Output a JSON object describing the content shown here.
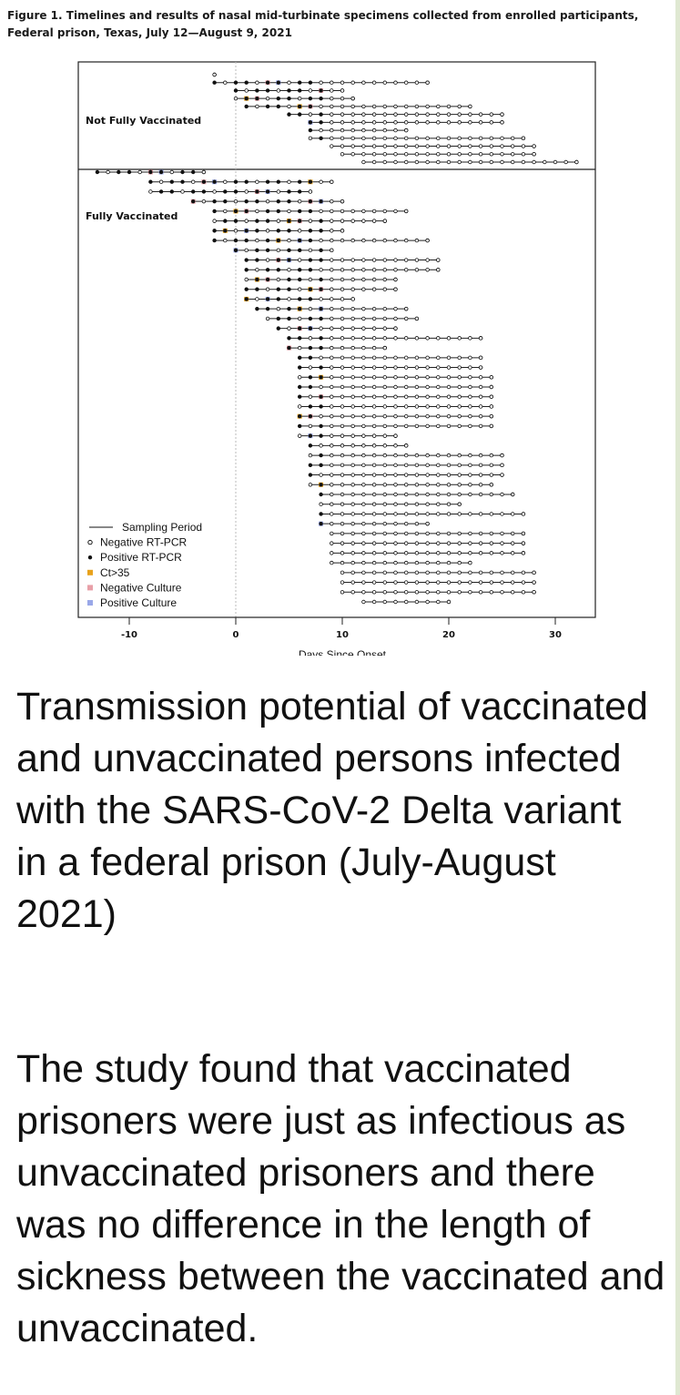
{
  "post": {
    "figure_caption": "Figure 1. Timelines and results of nasal mid-turbinate specimens collected from enrolled participants, Federal prison, Texas, July 12—August 9, 2021",
    "headline": "Transmission potential of vaccinated and unvaccinated persons infected with the SARS-CoV-2 Delta variant in a federal prison (July-August 2021)",
    "body": "The study found that vaccinated prisoners were just as infectious as unvaccinated prisoners and there was no difference in the length of sickness between the vaccinated and unvaccinated."
  },
  "colors": {
    "ct35": "#e8a21c",
    "negative_culture": "#e8a0a8",
    "positive_culture": "#9aa8e8"
  },
  "chart_data": {
    "type": "timeline",
    "xlabel": "Days Since Onset",
    "xlim": [
      -15,
      34
    ],
    "xticks": [
      -10,
      0,
      10,
      20,
      30
    ],
    "groups": [
      "Not Fully Vaccinated",
      "Fully Vaccinated"
    ],
    "legend_position": "bottom-left",
    "legend": [
      {
        "symbol": "line",
        "label": "Sampling Period"
      },
      {
        "symbol": "open-circle",
        "label": "Negative RT-PCR"
      },
      {
        "symbol": "filled-circle",
        "label": "Positive RT-PCR"
      },
      {
        "symbol": "orange-square",
        "label": "Ct>35"
      },
      {
        "symbol": "pink-square",
        "label": "Negative Culture"
      },
      {
        "symbol": "blue-square",
        "label": "Positive Culture"
      }
    ],
    "participants": [
      {
        "group": "Not Fully Vaccinated",
        "start": -2,
        "end": -2
      },
      {
        "group": "Not Fully Vaccinated",
        "start": -2,
        "end": 18
      },
      {
        "group": "Not Fully Vaccinated",
        "start": 0,
        "end": 10
      },
      {
        "group": "Not Fully Vaccinated",
        "start": 0,
        "end": 11
      },
      {
        "group": "Not Fully Vaccinated",
        "start": 1,
        "end": 22
      },
      {
        "group": "Not Fully Vaccinated",
        "start": 5,
        "end": 25
      },
      {
        "group": "Not Fully Vaccinated",
        "start": 7,
        "end": 25
      },
      {
        "group": "Not Fully Vaccinated",
        "start": 7,
        "end": 16
      },
      {
        "group": "Not Fully Vaccinated",
        "start": 7,
        "end": 27
      },
      {
        "group": "Not Fully Vaccinated",
        "start": 9,
        "end": 28
      },
      {
        "group": "Not Fully Vaccinated",
        "start": 10,
        "end": 28
      },
      {
        "group": "Not Fully Vaccinated",
        "start": 12,
        "end": 32
      },
      {
        "group": "Fully Vaccinated",
        "start": -13,
        "end": -3
      },
      {
        "group": "Fully Vaccinated",
        "start": -8,
        "end": 9
      },
      {
        "group": "Fully Vaccinated",
        "start": -8,
        "end": 7
      },
      {
        "group": "Fully Vaccinated",
        "start": -4,
        "end": 10
      },
      {
        "group": "Fully Vaccinated",
        "start": -2,
        "end": 16
      },
      {
        "group": "Fully Vaccinated",
        "start": -2,
        "end": 14
      },
      {
        "group": "Fully Vaccinated",
        "start": -2,
        "end": 10
      },
      {
        "group": "Fully Vaccinated",
        "start": -2,
        "end": 18
      },
      {
        "group": "Fully Vaccinated",
        "start": 0,
        "end": 9
      },
      {
        "group": "Fully Vaccinated",
        "start": 1,
        "end": 19
      },
      {
        "group": "Fully Vaccinated",
        "start": 1,
        "end": 19
      },
      {
        "group": "Fully Vaccinated",
        "start": 1,
        "end": 15
      },
      {
        "group": "Fully Vaccinated",
        "start": 1,
        "end": 15
      },
      {
        "group": "Fully Vaccinated",
        "start": 1,
        "end": 11
      },
      {
        "group": "Fully Vaccinated",
        "start": 2,
        "end": 16
      },
      {
        "group": "Fully Vaccinated",
        "start": 3,
        "end": 17
      },
      {
        "group": "Fully Vaccinated",
        "start": 4,
        "end": 15
      },
      {
        "group": "Fully Vaccinated",
        "start": 5,
        "end": 23
      },
      {
        "group": "Fully Vaccinated",
        "start": 5,
        "end": 14
      },
      {
        "group": "Fully Vaccinated",
        "start": 6,
        "end": 23
      },
      {
        "group": "Fully Vaccinated",
        "start": 6,
        "end": 23
      },
      {
        "group": "Fully Vaccinated",
        "start": 6,
        "end": 24
      },
      {
        "group": "Fully Vaccinated",
        "start": 6,
        "end": 24
      },
      {
        "group": "Fully Vaccinated",
        "start": 6,
        "end": 24
      },
      {
        "group": "Fully Vaccinated",
        "start": 6,
        "end": 24
      },
      {
        "group": "Fully Vaccinated",
        "start": 6,
        "end": 24
      },
      {
        "group": "Fully Vaccinated",
        "start": 6,
        "end": 24
      },
      {
        "group": "Fully Vaccinated",
        "start": 6,
        "end": 15
      },
      {
        "group": "Fully Vaccinated",
        "start": 7,
        "end": 16
      },
      {
        "group": "Fully Vaccinated",
        "start": 7,
        "end": 25
      },
      {
        "group": "Fully Vaccinated",
        "start": 7,
        "end": 25
      },
      {
        "group": "Fully Vaccinated",
        "start": 7,
        "end": 25
      },
      {
        "group": "Fully Vaccinated",
        "start": 7,
        "end": 24
      },
      {
        "group": "Fully Vaccinated",
        "start": 8,
        "end": 26
      },
      {
        "group": "Fully Vaccinated",
        "start": 8,
        "end": 21
      },
      {
        "group": "Fully Vaccinated",
        "start": 8,
        "end": 27
      },
      {
        "group": "Fully Vaccinated",
        "start": 8,
        "end": 18
      },
      {
        "group": "Fully Vaccinated",
        "start": 9,
        "end": 27
      },
      {
        "group": "Fully Vaccinated",
        "start": 9,
        "end": 27
      },
      {
        "group": "Fully Vaccinated",
        "start": 9,
        "end": 27
      },
      {
        "group": "Fully Vaccinated",
        "start": 9,
        "end": 22
      },
      {
        "group": "Fully Vaccinated",
        "start": 10,
        "end": 28
      },
      {
        "group": "Fully Vaccinated",
        "start": 10,
        "end": 28
      },
      {
        "group": "Fully Vaccinated",
        "start": 10,
        "end": 28
      },
      {
        "group": "Fully Vaccinated",
        "start": 12,
        "end": 20
      }
    ]
  }
}
